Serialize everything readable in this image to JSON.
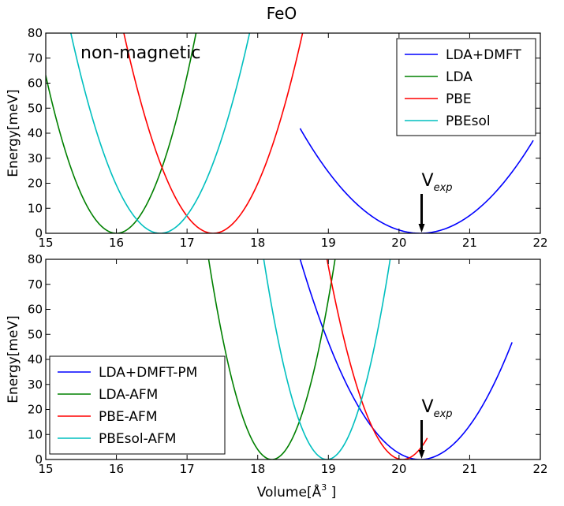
{
  "figure_title": "FeO",
  "chart_data": [
    {
      "type": "line",
      "panel": "top",
      "title": "FeO",
      "xlabel": "",
      "ylabel": "Energy[meV]",
      "annotation": "non-magnetic",
      "xlim": [
        15,
        22
      ],
      "ylim": [
        0,
        80
      ],
      "xticks": [
        15,
        16,
        17,
        18,
        19,
        20,
        21,
        22
      ],
      "yticks": [
        0,
        10,
        20,
        30,
        40,
        50,
        60,
        70,
        80
      ],
      "legend_position": "top-right",
      "marker_label": {
        "base": "V",
        "sub": "exp"
      },
      "marker_x": 20.32,
      "series": [
        {
          "name": "LDA+DMFT",
          "color": "#0000ff",
          "x0": 20.3,
          "a": 14.5,
          "b": 0,
          "xmin": 18.6,
          "xmax": 21.9
        },
        {
          "name": "LDA",
          "color": "#008000",
          "x0": 16.0,
          "a": 63,
          "b": 0,
          "xmin": 14.9,
          "xmax": 17.4
        },
        {
          "name": "PBE",
          "color": "#ff0000",
          "x0": 17.37,
          "a": 50,
          "b": 0,
          "xmin": 16.0,
          "xmax": 18.8
        },
        {
          "name": "PBEsol",
          "color": "#00bfbf",
          "x0": 16.62,
          "a": 50,
          "b": 0,
          "xmin": 15.2,
          "xmax": 18.0
        }
      ]
    },
    {
      "type": "line",
      "panel": "bottom",
      "title": "",
      "xlabel": "Volume[Å³]",
      "xlabel_base": "Volume[Å",
      "xlabel_sup": "3",
      "xlabel_end": " ]",
      "ylabel": "Energy[meV]",
      "xlim": [
        15,
        22
      ],
      "ylim": [
        0,
        80
      ],
      "xticks": [
        15,
        16,
        17,
        18,
        19,
        20,
        21,
        22
      ],
      "yticks": [
        0,
        10,
        20,
        30,
        40,
        50,
        60,
        70,
        80
      ],
      "legend_position": "lower-left",
      "marker_label": {
        "base": "V",
        "sub": "exp"
      },
      "marker_x": 20.32,
      "series": [
        {
          "name": "LDA+DMFT-PM",
          "color": "#0000ff",
          "x0": 20.3,
          "a": 27.7,
          "b": 0,
          "xmin": 18.6,
          "xmax": 21.6
        },
        {
          "name": "LDA-AFM",
          "color": "#008000",
          "x0": 18.2,
          "a": 100,
          "b": 0,
          "xmin": 17.2,
          "xmax": 19.2
        },
        {
          "name": "PBE-AFM",
          "color": "#ff0000",
          "x0": 20.05,
          "a": 70,
          "b": 0,
          "xmin": 18.9,
          "xmax": 20.4
        },
        {
          "name": "PBEsol-AFM",
          "color": "#00bfbf",
          "x0": 18.98,
          "a": 100,
          "b": 0,
          "xmin": 17.9,
          "xmax": 20.2
        }
      ]
    }
  ]
}
